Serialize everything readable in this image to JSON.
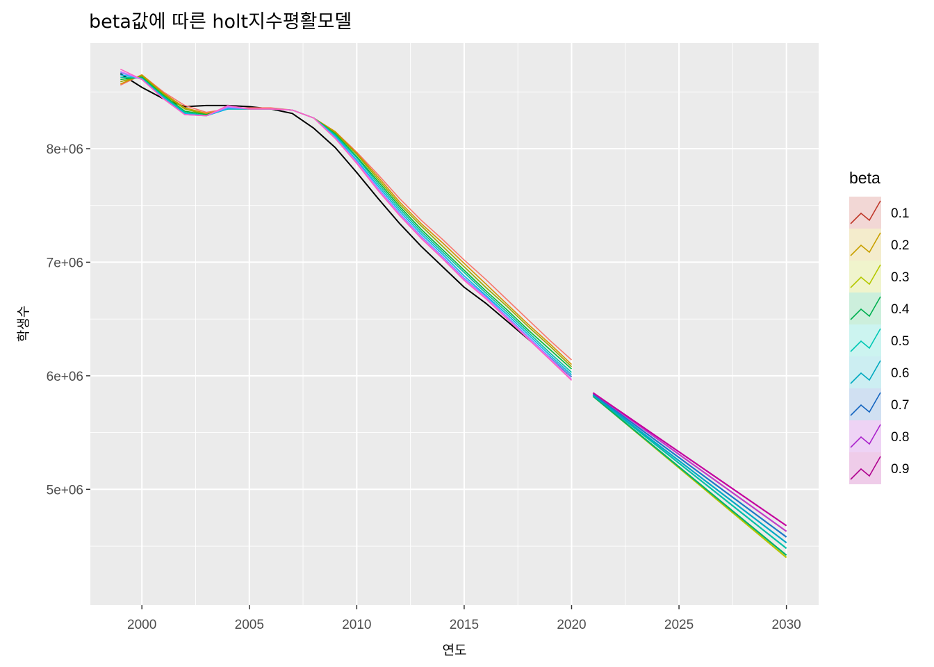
{
  "chart_data": {
    "type": "line",
    "title": "beta값에 따른 holt지수평활모델",
    "xlabel": "연도",
    "ylabel": "학생수",
    "xlim": [
      1997.6,
      2031.5
    ],
    "ylim": [
      3980000,
      8930000
    ],
    "x_ticks": [
      2000,
      2005,
      2010,
      2015,
      2020,
      2025,
      2030
    ],
    "x_tick_labels": [
      "2000",
      "2005",
      "2010",
      "2015",
      "2020",
      "2025",
      "2030"
    ],
    "y_ticks": [
      5000000,
      6000000,
      7000000,
      8000000
    ],
    "y_tick_labels": [
      "5e+06",
      "6e+06",
      "7e+06",
      "8e+06"
    ],
    "legend_title": "beta",
    "legend_position": "right",
    "background": "#ebebeb",
    "grid": true,
    "actual": {
      "color": "#000000",
      "x": [
        1999,
        2000,
        2001,
        2002,
        2003,
        2004,
        2005,
        2006,
        2007,
        2008,
        2009,
        2010,
        2011,
        2012,
        2013,
        2014,
        2015,
        2016,
        2017,
        2018,
        2019,
        2020
      ],
      "values": [
        8660000,
        8540000,
        8440000,
        8370000,
        8380000,
        8380000,
        8370000,
        8350000,
        8310000,
        8180000,
        8010000,
        7790000,
        7560000,
        7340000,
        7140000,
        6960000,
        6780000,
        6640000,
        6480000,
        6320000,
        6160000,
        5990000
      ]
    },
    "series": [
      {
        "name": "0.1",
        "color": "#F8766D",
        "x": [
          1999,
          2000,
          2001,
          2002,
          2003,
          2004,
          2005,
          2006,
          2007,
          2008,
          2009,
          2010,
          2011,
          2012,
          2013,
          2014,
          2015,
          2016,
          2017,
          2018,
          2019,
          2020
        ],
        "values": [
          8560000,
          8650000,
          8500000,
          8380000,
          8320000,
          8350000,
          8360000,
          8360000,
          8340000,
          8270000,
          8150000,
          7970000,
          7770000,
          7560000,
          7370000,
          7200000,
          7020000,
          6850000,
          6670000,
          6490000,
          6310000,
          6140000
        ]
      },
      {
        "name": "0.2",
        "color": "#D39200",
        "x": [
          1999,
          2000,
          2001,
          2002,
          2003,
          2004,
          2005,
          2006,
          2007,
          2008,
          2009,
          2010,
          2011,
          2012,
          2013,
          2014,
          2015,
          2016,
          2017,
          2018,
          2019,
          2020
        ],
        "values": [
          8570000,
          8650000,
          8490000,
          8360000,
          8310000,
          8350000,
          8350000,
          8350000,
          8340000,
          8270000,
          8150000,
          7960000,
          7750000,
          7530000,
          7340000,
          7170000,
          6990000,
          6810000,
          6630000,
          6450000,
          6280000,
          6100000
        ]
      },
      {
        "name": "0.3",
        "color": "#93AA00",
        "x": [
          1999,
          2000,
          2001,
          2002,
          2003,
          2004,
          2005,
          2006,
          2007,
          2008,
          2009,
          2010,
          2011,
          2012,
          2013,
          2014,
          2015,
          2016,
          2017,
          2018,
          2019,
          2020,
          2021,
          2030
        ],
        "values": [
          8590000,
          8640000,
          8480000,
          8350000,
          8300000,
          8350000,
          8350000,
          8350000,
          8340000,
          8270000,
          8140000,
          7950000,
          7730000,
          7510000,
          7320000,
          7140000,
          6960000,
          6780000,
          6610000,
          6430000,
          6260000,
          6080000,
          5820000,
          4400000
        ]
      },
      {
        "name": "0.4",
        "color": "#00BA38",
        "x": [
          1999,
          2000,
          2001,
          2002,
          2003,
          2004,
          2005,
          2006,
          2007,
          2008,
          2009,
          2010,
          2011,
          2012,
          2013,
          2014,
          2015,
          2016,
          2017,
          2018,
          2019,
          2020,
          2021,
          2030
        ],
        "values": [
          8610000,
          8630000,
          8470000,
          8330000,
          8300000,
          8350000,
          8350000,
          8350000,
          8340000,
          8270000,
          8130000,
          7930000,
          7710000,
          7490000,
          7290000,
          7110000,
          6930000,
          6750000,
          6580000,
          6400000,
          6230000,
          6060000,
          5820000,
          4420000
        ]
      },
      {
        "name": "0.5",
        "color": "#00C19F",
        "x": [
          1999,
          2000,
          2001,
          2002,
          2003,
          2004,
          2005,
          2006,
          2007,
          2008,
          2009,
          2010,
          2011,
          2012,
          2013,
          2014,
          2015,
          2016,
          2017,
          2018,
          2019,
          2020,
          2021,
          2030
        ],
        "values": [
          8630000,
          8620000,
          8460000,
          8320000,
          8290000,
          8350000,
          8350000,
          8350000,
          8340000,
          8270000,
          8120000,
          7920000,
          7690000,
          7470000,
          7270000,
          7090000,
          6910000,
          6730000,
          6560000,
          6380000,
          6200000,
          6030000,
          5830000,
          4480000
        ]
      },
      {
        "name": "0.6",
        "color": "#00B9E3",
        "x": [
          1999,
          2000,
          2001,
          2002,
          2003,
          2004,
          2005,
          2006,
          2007,
          2008,
          2009,
          2010,
          2011,
          2012,
          2013,
          2014,
          2015,
          2016,
          2017,
          2018,
          2019,
          2020,
          2021,
          2030
        ],
        "values": [
          8650000,
          8620000,
          8450000,
          8310000,
          8290000,
          8350000,
          8350000,
          8350000,
          8340000,
          8270000,
          8110000,
          7900000,
          7670000,
          7450000,
          7250000,
          7070000,
          6880000,
          6710000,
          6540000,
          6360000,
          6180000,
          6010000,
          5830000,
          4530000
        ]
      },
      {
        "name": "0.7",
        "color": "#619CFF",
        "x": [
          1999,
          2000,
          2001,
          2002,
          2003,
          2004,
          2005,
          2006,
          2007,
          2008,
          2009,
          2010,
          2011,
          2012,
          2013,
          2014,
          2015,
          2016,
          2017,
          2018,
          2019,
          2020,
          2021,
          2030
        ],
        "values": [
          8670000,
          8610000,
          8440000,
          8300000,
          8290000,
          8360000,
          8350000,
          8350000,
          8340000,
          8270000,
          8100000,
          7890000,
          7650000,
          7430000,
          7230000,
          7050000,
          6860000,
          6700000,
          6520000,
          6340000,
          6160000,
          5990000,
          5840000,
          4580000
        ]
      },
      {
        "name": "0.8",
        "color": "#DB72FB",
        "x": [
          1999,
          2000,
          2001,
          2002,
          2003,
          2004,
          2005,
          2006,
          2007,
          2008,
          2009,
          2010,
          2011,
          2012,
          2013,
          2014,
          2015,
          2016,
          2017,
          2018,
          2019,
          2020,
          2021,
          2030
        ],
        "values": [
          8680000,
          8610000,
          8440000,
          8300000,
          8290000,
          8370000,
          8350000,
          8350000,
          8340000,
          8270000,
          8090000,
          7880000,
          7640000,
          7420000,
          7220000,
          7040000,
          6850000,
          6690000,
          6510000,
          6330000,
          6150000,
          5970000,
          5850000,
          4630000
        ]
      },
      {
        "name": "0.9",
        "color": "#FF61C3",
        "x": [
          1999,
          2000,
          2001,
          2002,
          2003,
          2004,
          2005,
          2006,
          2007,
          2008,
          2009,
          2010,
          2011,
          2012,
          2013,
          2014,
          2015,
          2016,
          2017,
          2018,
          2019,
          2020,
          2021,
          2030
        ],
        "values": [
          8700000,
          8610000,
          8440000,
          8300000,
          8290000,
          8380000,
          8350000,
          8350000,
          8340000,
          8270000,
          8090000,
          7870000,
          7630000,
          7410000,
          7210000,
          7030000,
          6840000,
          6680000,
          6500000,
          6320000,
          6140000,
          5960000,
          5850000,
          4680000
        ]
      }
    ],
    "forecast_colors": {
      "0.1": "#F8766D",
      "0.2": "#C7A500",
      "0.3": "#B8C400",
      "0.4": "#00B26A",
      "0.5": "#00BFA8",
      "0.6": "#00A9C6",
      "0.7": "#1E78C8",
      "0.8": "#C03EC9",
      "0.9": "#C4009E"
    },
    "legend_key_colors": {
      "0.1": "#C0392B",
      "0.2": "#C9A000",
      "0.3": "#B5C800",
      "0.4": "#00B050",
      "0.5": "#00C8B5",
      "0.6": "#00A9C0",
      "0.7": "#1565C0",
      "0.8": "#AA22CC",
      "0.9": "#B0008F"
    }
  }
}
